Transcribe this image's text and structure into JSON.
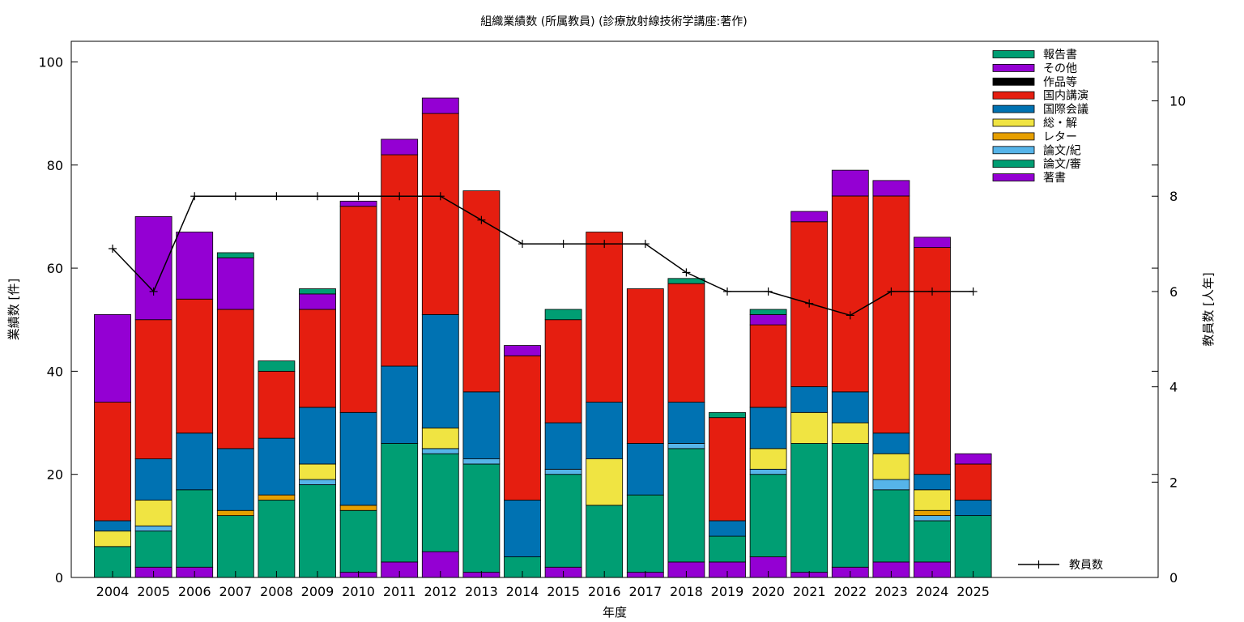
{
  "chart_data": {
    "type": "bar",
    "title": "組織業績数 (所属教員) (診療放射線技術学講座:著作)",
    "xlabel": "年度",
    "ylabel": "業績数 [件]",
    "y2label": "教員数 [人年]",
    "ylim": [
      0,
      104
    ],
    "y2lim": [
      0,
      11.25
    ],
    "yticks": [
      0,
      20,
      40,
      60,
      80,
      100
    ],
    "y2ticks": [
      0,
      2,
      4,
      6,
      8,
      10
    ],
    "stacked": true,
    "grid": false,
    "legend_position": "top-right",
    "categories": [
      "2004",
      "2005",
      "2006",
      "2007",
      "2008",
      "2009",
      "2010",
      "2011",
      "2012",
      "2013",
      "2014",
      "2015",
      "2016",
      "2017",
      "2018",
      "2019",
      "2020",
      "2021",
      "2022",
      "2023",
      "2024",
      "2025"
    ],
    "series": [
      {
        "name": "著書",
        "color": "#9400d3",
        "values": [
          0,
          2,
          2,
          0,
          0,
          0,
          1,
          3,
          5,
          1,
          0,
          2,
          0,
          1,
          3,
          3,
          4,
          1,
          2,
          3,
          3,
          0
        ]
      },
      {
        "name": "論文/審",
        "color": "#009e73",
        "values": [
          6,
          7,
          15,
          12,
          15,
          18,
          12,
          23,
          19,
          21,
          4,
          18,
          14,
          15,
          22,
          5,
          16,
          25,
          24,
          14,
          8,
          12
        ]
      },
      {
        "name": "論文/紀",
        "color": "#56b4e9",
        "values": [
          0,
          1,
          0,
          0,
          0,
          1,
          0,
          0,
          1,
          1,
          0,
          1,
          0,
          0,
          1,
          0,
          1,
          0,
          0,
          2,
          1,
          0
        ]
      },
      {
        "name": "レター",
        "color": "#e69f00",
        "values": [
          0,
          0,
          0,
          1,
          1,
          0,
          1,
          0,
          0,
          0,
          0,
          0,
          0,
          0,
          0,
          0,
          0,
          0,
          0,
          0,
          1,
          0
        ]
      },
      {
        "name": "総・解",
        "color": "#f0e442",
        "values": [
          3,
          5,
          0,
          0,
          0,
          3,
          0,
          0,
          4,
          0,
          0,
          0,
          9,
          0,
          0,
          0,
          4,
          6,
          4,
          5,
          4,
          0
        ]
      },
      {
        "name": "国際会議",
        "color": "#0072b2",
        "values": [
          2,
          8,
          11,
          12,
          11,
          11,
          18,
          15,
          22,
          13,
          11,
          9,
          11,
          10,
          8,
          3,
          8,
          5,
          6,
          4,
          3,
          3
        ]
      },
      {
        "name": "国内講演",
        "color": "#e51e10",
        "values": [
          23,
          27,
          26,
          27,
          13,
          19,
          40,
          41,
          39,
          39,
          28,
          20,
          33,
          30,
          23,
          20,
          16,
          32,
          38,
          46,
          44,
          7
        ]
      },
      {
        "name": "作品等",
        "color": "#000000",
        "values": [
          0,
          0,
          0,
          0,
          0,
          0,
          0,
          0,
          0,
          0,
          0,
          0,
          0,
          0,
          0,
          0,
          0,
          0,
          0,
          0,
          0,
          0
        ]
      },
      {
        "name": "その他",
        "color": "#9400d3",
        "values": [
          17,
          20,
          13,
          10,
          0,
          3,
          1,
          3,
          3,
          0,
          2,
          0,
          0,
          0,
          0,
          0,
          2,
          2,
          5,
          3,
          2,
          2
        ]
      },
      {
        "name": "報告書",
        "color": "#009e73",
        "values": [
          0,
          0,
          0,
          1,
          2,
          1,
          0,
          0,
          0,
          0,
          0,
          2,
          0,
          0,
          1,
          1,
          1,
          0,
          0,
          0,
          0,
          0
        ]
      }
    ],
    "line": {
      "name": "教員数",
      "axis": "y2",
      "color": "#000000",
      "values": [
        6.9,
        6.0,
        8.0,
        8.0,
        8.0,
        8.0,
        8.0,
        8.0,
        8.0,
        7.5,
        7.0,
        7.0,
        7.0,
        7.0,
        6.4,
        6.0,
        6.0,
        5.75,
        5.5,
        6.0,
        6.0,
        6.0
      ]
    }
  }
}
